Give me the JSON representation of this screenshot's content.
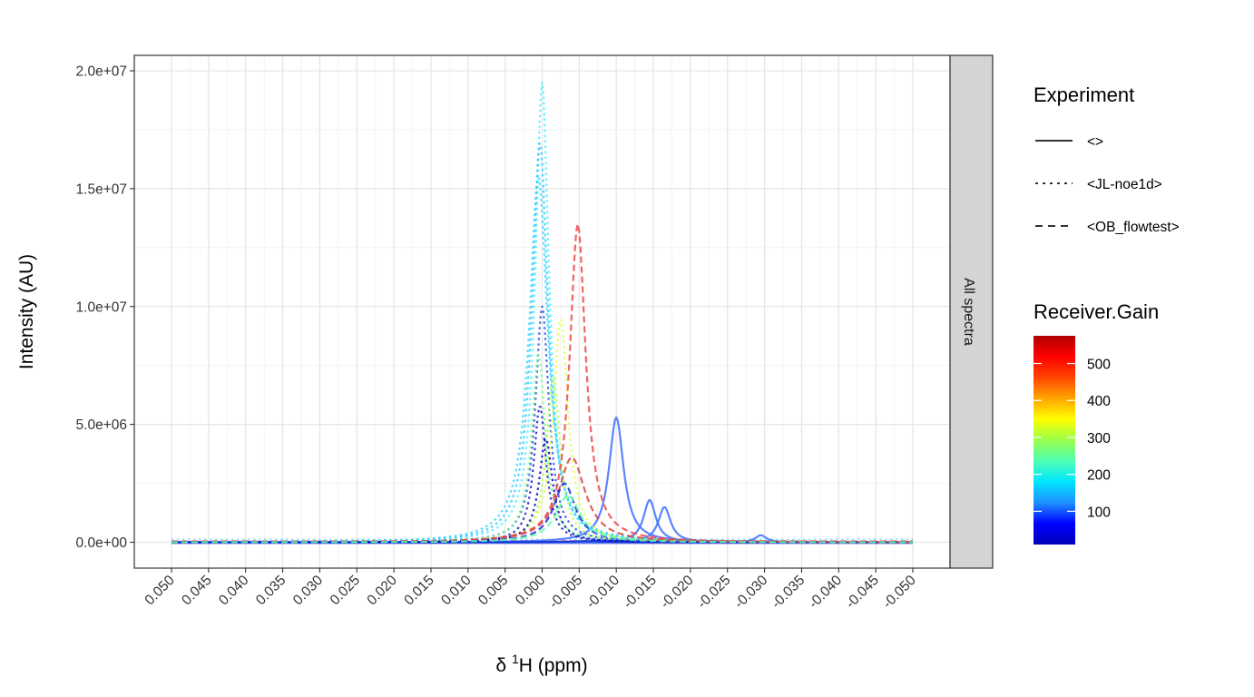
{
  "chart_data": {
    "type": "line",
    "xlabel_prefix": "δ ",
    "xlabel_sup": "1",
    "xlabel_rest": "H (ppm)",
    "ylabel": "Intensity (AU)",
    "x_reversed": true,
    "xlim": [
      0.05,
      -0.05
    ],
    "ylim": [
      0,
      20000000
    ],
    "x_ticks": [
      "0.050",
      "0.045",
      "0.040",
      "0.035",
      "0.030",
      "0.025",
      "0.020",
      "0.015",
      "0.010",
      "0.005",
      "0.000",
      "-0.005",
      "-0.010",
      "-0.015",
      "-0.020",
      "-0.025",
      "-0.030",
      "-0.035",
      "-0.040",
      "-0.045",
      "-0.050"
    ],
    "y_ticks": [
      {
        "value": 0,
        "label": "0.0e+00"
      },
      {
        "value": 5000000,
        "label": "5.0e+06"
      },
      {
        "value": 10000000,
        "label": "1.0e+07"
      },
      {
        "value": 15000000,
        "label": "1.5e+07"
      },
      {
        "value": 20000000,
        "label": "2.0e+07"
      }
    ],
    "grid": true,
    "facet_strip": "All spectra",
    "legend_linetype": {
      "title": "Experiment",
      "entries": [
        {
          "label": "<>",
          "dash": "solid"
        },
        {
          "label": "<JL-noe1d>",
          "dash": "dotted"
        },
        {
          "label": "<OB_flowtest>",
          "dash": "dashed"
        }
      ]
    },
    "legend_color": {
      "title": "Receiver.Gain",
      "range": [
        10,
        575
      ],
      "ticks": [
        100,
        200,
        300,
        400,
        500
      ],
      "colors": [
        "#0000ba",
        "#0000ff",
        "#1e90ff",
        "#00e5ff",
        "#4dffb3",
        "#99ff4d",
        "#ffff00",
        "#ffa500",
        "#ff4500",
        "#ff0000",
        "#b00000"
      ]
    },
    "series": [
      {
        "experiment": "<>",
        "gain": 125,
        "center": -0.01,
        "height": 5300000,
        "width": 0.0012,
        "color": "#3f6fff"
      },
      {
        "experiment": "<>",
        "gain": 125,
        "center": -0.0145,
        "height": 1800000,
        "width": 0.001,
        "color": "#3f6fff"
      },
      {
        "experiment": "<>",
        "gain": 125,
        "center": -0.0165,
        "height": 1500000,
        "width": 0.001,
        "color": "#3f6fff"
      },
      {
        "experiment": "<>",
        "gain": 125,
        "center": -0.0295,
        "height": 300000,
        "width": 0.0009,
        "color": "#3f6fff"
      },
      {
        "experiment": "<>",
        "gain": 40,
        "center": -0.006,
        "height": 50000,
        "width": 0.003,
        "color": "#1030d0"
      },
      {
        "experiment": "<JL-noe1d>",
        "gain": 200,
        "center": 0.0,
        "height": 19500000,
        "width": 0.0011,
        "color": "#4df0ff"
      },
      {
        "experiment": "<JL-noe1d>",
        "gain": 185,
        "center": 0.0003,
        "height": 17000000,
        "width": 0.0013,
        "color": "#2ec8ff"
      },
      {
        "experiment": "<JL-noe1d>",
        "gain": 195,
        "center": 0.0005,
        "height": 15500000,
        "width": 0.0015,
        "color": "#33d6ff"
      },
      {
        "experiment": "<JL-noe1d>",
        "gain": 60,
        "center": 0.0,
        "height": 10000000,
        "width": 0.0011,
        "color": "#2a50e6"
      },
      {
        "experiment": "<JL-noe1d>",
        "gain": 360,
        "center": -0.0025,
        "height": 9500000,
        "width": 0.0012,
        "color": "#e8ff3a"
      },
      {
        "experiment": "<JL-noe1d>",
        "gain": 290,
        "center": 0.0005,
        "height": 8000000,
        "width": 0.0011,
        "color": "#73ff8a"
      },
      {
        "experiment": "<JL-noe1d>",
        "gain": 320,
        "center": -0.0015,
        "height": 7000000,
        "width": 0.0011,
        "color": "#b0ff50"
      },
      {
        "experiment": "<JL-noe1d>",
        "gain": 50,
        "center": 0.0003,
        "height": 5800000,
        "width": 0.001,
        "color": "#1a1ad0"
      },
      {
        "experiment": "<JL-noe1d>",
        "gain": 30,
        "center": -0.0005,
        "height": 4400000,
        "width": 0.0011,
        "color": "#0000c8"
      },
      {
        "experiment": "<OB_flowtest>",
        "gain": 500,
        "center": -0.0048,
        "height": 13500000,
        "width": 0.0013,
        "color": "#ef4a4a"
      },
      {
        "experiment": "<OB_flowtest>",
        "gain": 470,
        "center": -0.004,
        "height": 3600000,
        "width": 0.0022,
        "color": "#d84545"
      },
      {
        "experiment": "<OB_flowtest>",
        "gain": 40,
        "center": -0.003,
        "height": 2500000,
        "width": 0.0018,
        "color": "#1c2ad8"
      },
      {
        "experiment": "<OB_flowtest>",
        "gain": 260,
        "center": -0.0035,
        "height": 2000000,
        "width": 0.002,
        "color": "#60ffa0"
      }
    ]
  }
}
